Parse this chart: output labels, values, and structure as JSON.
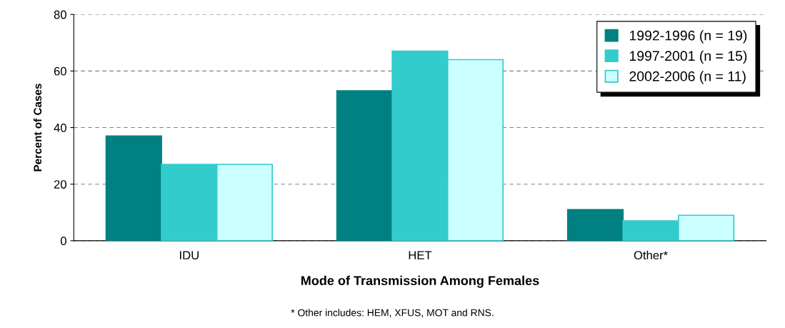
{
  "chart_data": {
    "type": "bar",
    "xlabel": "Mode of Transmission Among Females",
    "ylabel": "Percent of Cases",
    "categories": [
      "IDU",
      "HET",
      "Other*"
    ],
    "series": [
      {
        "name": "1992-1996 (n = 19)",
        "color": "#008080",
        "values": [
          37,
          53,
          11
        ]
      },
      {
        "name": "1997-2001 (n = 15)",
        "color": "#33cccc",
        "values": [
          27,
          67,
          7
        ]
      },
      {
        "name": "2002-2006 (n = 11)",
        "color": "#ccffff",
        "values": [
          27,
          64,
          9
        ]
      }
    ],
    "ylim": [
      0,
      80
    ],
    "yticks": [
      0,
      20,
      40,
      60,
      80
    ],
    "grid": "y",
    "legend": "top right",
    "annotations": [
      "* Other includes: HEM, XFUS, MOT and RNS."
    ]
  }
}
